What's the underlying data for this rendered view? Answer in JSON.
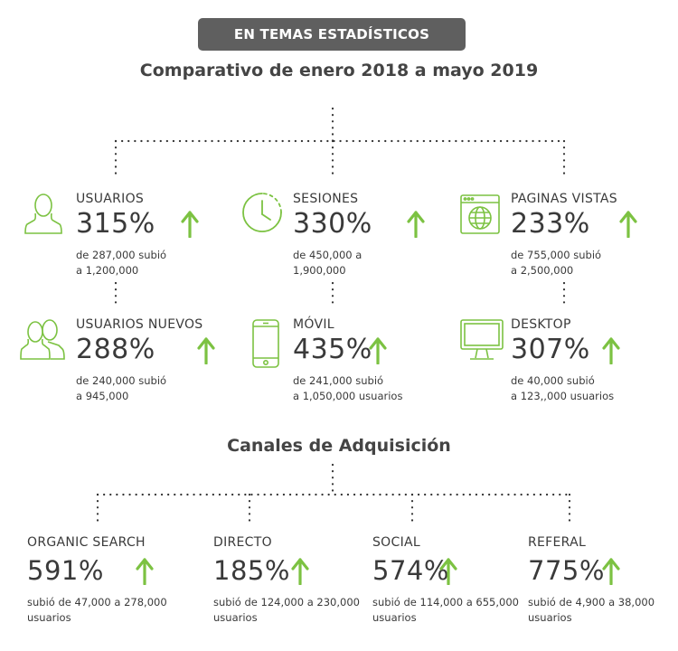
{
  "header_badge": "EN TEMAS ESTADÍSTICOS",
  "title": "Comparativo de enero 2018 a mayo 2019",
  "stats": [
    {
      "label": "USUARIOS",
      "pct": "315%",
      "desc": "de 287,000 subió\na 1,200,000",
      "icon": "user-icon"
    },
    {
      "label": "SESIONES",
      "pct": "330%",
      "desc": "de 450,000 a\n1,900,000",
      "icon": "clock-icon"
    },
    {
      "label": "PAGINAS VISTAS",
      "pct": "233%",
      "desc": "de 755,000 subió\na 2,500,000",
      "icon": "browser-globe-icon"
    },
    {
      "label": "USUARIOS NUEVOS",
      "pct": "288%",
      "desc": "de 240,000 subió\na 945,000",
      "icon": "users-icon"
    },
    {
      "label": "MÓVIL",
      "pct": "435%",
      "desc": "de 241,000 subió\na 1,050,000 usuarios",
      "icon": "mobile-icon"
    },
    {
      "label": "DESKTOP",
      "pct": "307%",
      "desc": "de 40,000 subió\na 123,,000 usuarios",
      "icon": "desktop-icon"
    }
  ],
  "channels_title": "Canales de Adquisición",
  "channels": [
    {
      "label": "ORGANIC SEARCH",
      "pct": "591%",
      "desc": "subió de 47,000 a 278,000\nusuarios"
    },
    {
      "label": "DIRECTO",
      "pct": "185%",
      "desc": "subió de 124,000 a 230,000\nusuarios"
    },
    {
      "label": "SOCIAL",
      "pct": "574%",
      "desc": "subió de 114,000 a 655,000\nusuarios"
    },
    {
      "label": "REFERAL",
      "pct": "775%",
      "desc": "subió de 4,900 a 38,000\nusuarios"
    }
  ],
  "colors": {
    "accent": "#7cc242",
    "badge_bg": "#5f5f5f",
    "text": "#3a3a3a"
  }
}
